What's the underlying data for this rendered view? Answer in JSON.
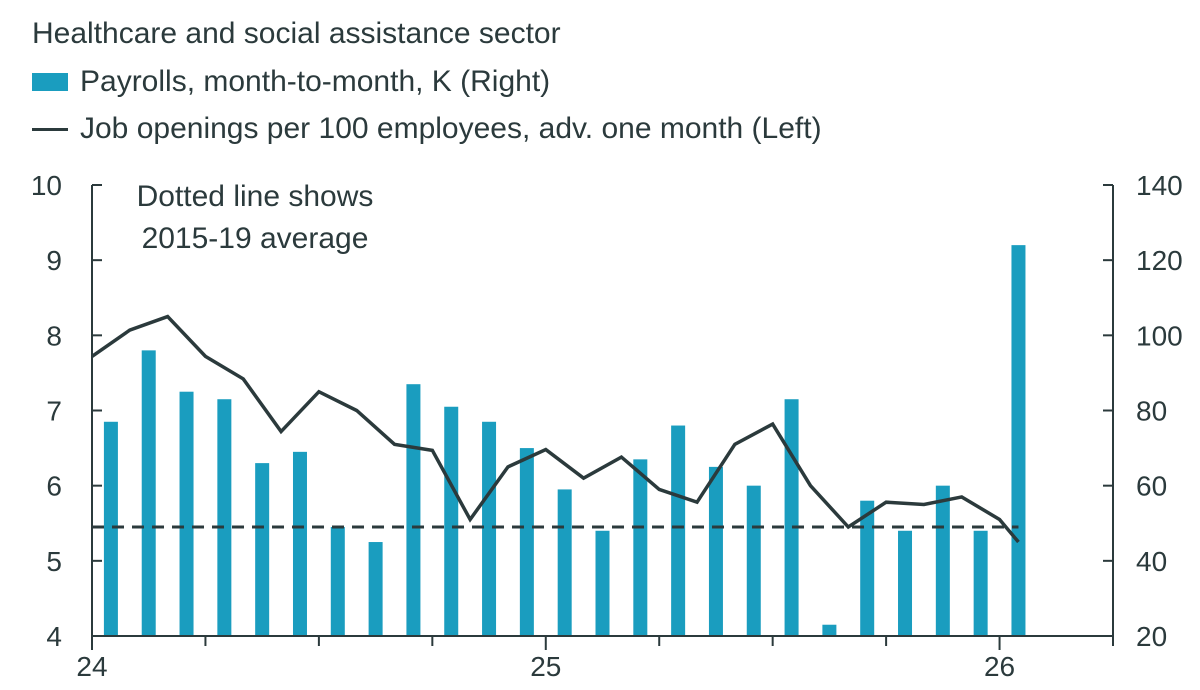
{
  "chart_data": {
    "type": "bar+line",
    "title": "Healthcare and social assistance sector",
    "annotation": [
      "Dotted line shows",
      "2015-19 average"
    ],
    "colors": {
      "bar": "#1a9dbf",
      "line": "#2b3a3c",
      "text": "#2b3a3c"
    },
    "x_axis": {
      "range": [
        0,
        27
      ],
      "tick_labels": [
        {
          "x": 0,
          "label": "24"
        },
        {
          "x": 12,
          "label": "25"
        },
        {
          "x": 24,
          "label": "26"
        }
      ],
      "minor_ticks": [
        3,
        6,
        9,
        15,
        18,
        21,
        27
      ]
    },
    "left_axis": {
      "label": "Job openings per 100 employees",
      "ylim": [
        4,
        10
      ],
      "ticks": [
        4,
        5,
        6,
        7,
        8,
        9,
        10
      ]
    },
    "right_axis": {
      "label": "Payrolls, month-to-month, K",
      "ylim": [
        20,
        140
      ],
      "ticks": [
        20,
        40,
        60,
        80,
        100,
        120,
        140
      ]
    },
    "series": [
      {
        "name": "Payrolls, month-to-month, K (Right)",
        "type": "bar",
        "axis": "right",
        "x": [
          0.5,
          1.5,
          2.5,
          3.5,
          4.5,
          5.5,
          6.5,
          7.5,
          8.5,
          9.5,
          10.5,
          11.5,
          12.5,
          13.5,
          14.5,
          15.5,
          16.5,
          17.5,
          18.5,
          19.5,
          20.5,
          21.5,
          22.5,
          23.5,
          24.5
        ],
        "values": [
          77,
          96,
          85,
          83,
          66,
          69,
          49,
          45,
          87,
          81,
          77,
          70,
          59,
          48,
          67,
          76,
          65,
          60,
          83,
          23,
          56,
          48,
          60,
          48,
          124
        ]
      },
      {
        "name": "Job openings per 100 employees, adv. one month (Left)",
        "type": "line",
        "axis": "left",
        "x": [
          0,
          1,
          2,
          3,
          4,
          5,
          6,
          7,
          8,
          9,
          10,
          11,
          12,
          13,
          14,
          15,
          16,
          17,
          18,
          19,
          20,
          21,
          22,
          23,
          24,
          24.5
        ],
        "values": [
          7.72,
          8.07,
          8.25,
          7.72,
          7.42,
          6.72,
          7.25,
          7.0,
          6.55,
          6.47,
          5.55,
          6.25,
          6.48,
          6.1,
          6.38,
          5.95,
          5.78,
          6.55,
          6.82,
          6.0,
          5.45,
          5.78,
          5.75,
          5.85,
          5.55,
          5.25
        ]
      },
      {
        "name": "2015-19 average",
        "type": "line",
        "style": "dashed",
        "axis": "left",
        "x": [
          0,
          24.5
        ],
        "values": [
          5.45,
          5.45
        ]
      }
    ]
  }
}
